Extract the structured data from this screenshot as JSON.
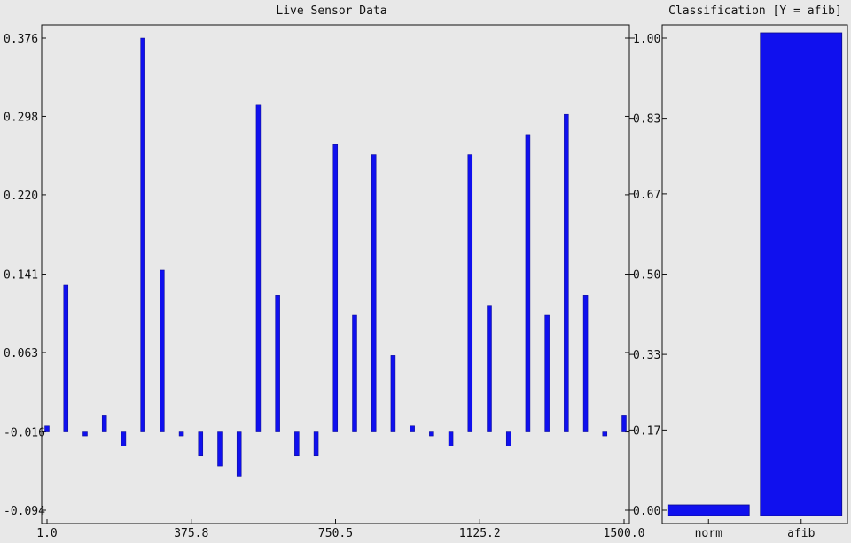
{
  "chart_data": [
    {
      "type": "bar",
      "title": "Live Sensor Data",
      "xlabel": "",
      "ylabel": "",
      "x_ticks": [
        "1.0",
        "375.8",
        "750.5",
        "1125.2",
        "1500.0"
      ],
      "y_ticks": [
        "0.376",
        "0.298",
        "0.220",
        "0.141",
        "0.063",
        "-0.016",
        "-0.094"
      ],
      "xlim": [
        1.0,
        1500.0
      ],
      "ylim": [
        -0.094,
        0.376
      ],
      "grid": false,
      "bar_color": "#1010ee",
      "x": [
        1,
        50,
        100,
        150,
        200,
        250,
        300,
        350,
        400,
        450,
        500,
        550,
        600,
        650,
        700,
        750,
        800,
        850,
        900,
        950,
        1000,
        1050,
        1100,
        1150,
        1200,
        1250,
        1300,
        1350,
        1400,
        1450,
        1500
      ],
      "values": [
        -0.01,
        0.13,
        -0.02,
        0.0,
        -0.03,
        0.376,
        0.145,
        -0.02,
        -0.04,
        -0.05,
        -0.06,
        0.31,
        0.12,
        -0.04,
        -0.04,
        0.27,
        0.1,
        0.26,
        0.06,
        -0.01,
        -0.02,
        -0.03,
        0.26,
        0.11,
        -0.03,
        0.28,
        0.1,
        0.3,
        0.12,
        -0.02,
        0.0
      ]
    },
    {
      "type": "bar",
      "title": "Classification [Y = afib]",
      "xlabel": "",
      "ylabel": "",
      "categories": [
        "norm",
        "afib"
      ],
      "values": [
        0.0,
        1.0
      ],
      "y_ticks": [
        "1.00",
        "0.83",
        "0.67",
        "0.50",
        "0.33",
        "0.17",
        "0.00"
      ],
      "ylim": [
        0.0,
        1.0
      ],
      "grid": false,
      "bar_color": "#1010ee"
    }
  ]
}
